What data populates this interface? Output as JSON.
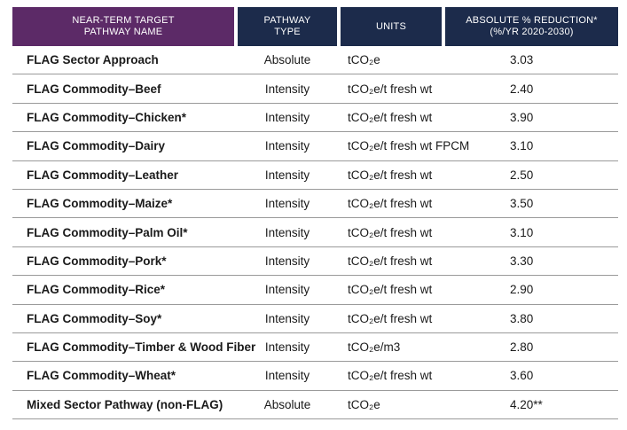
{
  "colors": {
    "header_purple": "#5C2A67",
    "header_navy": "#1C2B4B",
    "header_text": "#FFFFFF",
    "divider": "#9A9A9A",
    "body_text": "#1A1A1A"
  },
  "table": {
    "header": {
      "col1": {
        "lines": [
          "NEAR-TERM TARGET",
          "PATHWAY NAME"
        ]
      },
      "col2": {
        "lines": [
          "PATHWAY",
          "TYPE"
        ]
      },
      "col3": {
        "lines": [
          "UNITS"
        ]
      },
      "col4": {
        "lines": [
          "ABSOLUTE % REDUCTION*",
          "(%/YR 2020-2030)"
        ]
      }
    },
    "rows": [
      {
        "name": "FLAG Sector Approach",
        "type": "Absolute",
        "units": "tCO₂e",
        "value": "3.03"
      },
      {
        "name": "FLAG Commodity–Beef",
        "type": "Intensity",
        "units": "tCO₂e/t fresh wt",
        "value": "2.40"
      },
      {
        "name": "FLAG Commodity–Chicken*",
        "type": "Intensity",
        "units": "tCO₂e/t fresh wt",
        "value": "3.90"
      },
      {
        "name": "FLAG Commodity–Dairy",
        "type": "Intensity",
        "units": "tCO₂e/t fresh wt FPCM",
        "value": "3.10"
      },
      {
        "name": "FLAG Commodity–Leather",
        "type": "Intensity",
        "units": "tCO₂e/t fresh wt",
        "value": "2.50"
      },
      {
        "name": "FLAG Commodity–Maize*",
        "type": "Intensity",
        "units": "tCO₂e/t fresh wt",
        "value": "3.50"
      },
      {
        "name": "FLAG Commodity–Palm Oil*",
        "type": "Intensity",
        "units": "tCO₂e/t fresh wt",
        "value": "3.10"
      },
      {
        "name": "FLAG Commodity–Pork*",
        "type": "Intensity",
        "units": "tCO₂e/t fresh wt",
        "value": "3.30"
      },
      {
        "name": "FLAG Commodity–Rice*",
        "type": "Intensity",
        "units": "tCO₂e/t fresh wt",
        "value": "2.90"
      },
      {
        "name": "FLAG Commodity–Soy*",
        "type": "Intensity",
        "units": "tCO₂e/t fresh wt",
        "value": "3.80"
      },
      {
        "name": "FLAG Commodity–Timber & Wood Fiber",
        "type": "Intensity",
        "units": "tCO₂e/m3",
        "value": "2.80"
      },
      {
        "name": "FLAG Commodity–Wheat*",
        "type": "Intensity",
        "units": "tCO₂e/t fresh wt",
        "value": "3.60"
      },
      {
        "name": "Mixed Sector Pathway (non-FLAG)",
        "type": "Absolute",
        "units": "tCO₂e",
        "value": "4.20**"
      }
    ]
  }
}
